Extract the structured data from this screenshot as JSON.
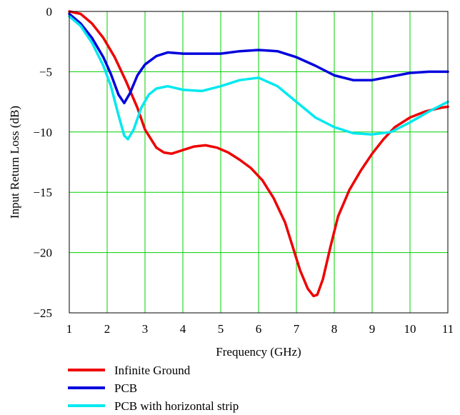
{
  "chart_data": {
    "type": "line",
    "xlabel": "Frequency (GHz)",
    "ylabel": "Input Return Loss (dB)",
    "xlim": [
      1,
      11
    ],
    "ylim": [
      -25,
      0
    ],
    "x_ticks": [
      1,
      2,
      3,
      4,
      5,
      6,
      7,
      8,
      9,
      10,
      11
    ],
    "y_ticks": [
      0,
      -5,
      -10,
      -15,
      -20,
      -25
    ],
    "y_tick_labels": [
      "0",
      "−5",
      "−10",
      "−15",
      "−20",
      "−25"
    ],
    "grid": true,
    "grid_color": "#00d000",
    "legend_position": "below",
    "series": [
      {
        "name": "Infinite Ground",
        "color": "#ee0000",
        "x": [
          1,
          1.3,
          1.6,
          1.9,
          2.2,
          2.5,
          2.8,
          3.0,
          3.3,
          3.5,
          3.7,
          4.0,
          4.3,
          4.6,
          4.9,
          5.2,
          5.5,
          5.8,
          6.1,
          6.4,
          6.7,
          6.9,
          7.1,
          7.3,
          7.45,
          7.55,
          7.7,
          7.9,
          8.1,
          8.4,
          8.7,
          9.0,
          9.3,
          9.6,
          10.0,
          10.4,
          10.8,
          11
        ],
        "y": [
          0,
          -0.2,
          -1.0,
          -2.2,
          -3.8,
          -5.8,
          -8.0,
          -9.8,
          -11.3,
          -11.7,
          -11.8,
          -11.5,
          -11.2,
          -11.1,
          -11.3,
          -11.7,
          -12.3,
          -13.0,
          -14.0,
          -15.5,
          -17.5,
          -19.5,
          -21.5,
          -23.0,
          -23.6,
          -23.5,
          -22.2,
          -19.5,
          -17.0,
          -14.8,
          -13.2,
          -11.8,
          -10.6,
          -9.6,
          -8.8,
          -8.3,
          -8.0,
          -7.9
        ]
      },
      {
        "name": "PCB",
        "color": "#0000dd",
        "x": [
          1,
          1.3,
          1.6,
          1.9,
          2.1,
          2.3,
          2.45,
          2.6,
          2.8,
          3.0,
          3.3,
          3.6,
          4.0,
          4.5,
          5.0,
          5.5,
          6.0,
          6.5,
          7.0,
          7.5,
          8.0,
          8.5,
          9.0,
          9.5,
          10.0,
          10.5,
          11
        ],
        "y": [
          -0.2,
          -1.0,
          -2.2,
          -3.8,
          -5.2,
          -6.9,
          -7.6,
          -6.8,
          -5.3,
          -4.4,
          -3.7,
          -3.4,
          -3.5,
          -3.5,
          -3.5,
          -3.3,
          -3.2,
          -3.3,
          -3.8,
          -4.5,
          -5.3,
          -5.7,
          -5.7,
          -5.4,
          -5.1,
          -5.0,
          -5.0
        ]
      },
      {
        "name": "PCB with horizontal strip",
        "color": "#00e8f0",
        "x": [
          1,
          1.3,
          1.6,
          1.9,
          2.1,
          2.3,
          2.45,
          2.55,
          2.7,
          2.9,
          3.1,
          3.3,
          3.6,
          4.0,
          4.5,
          5.0,
          5.5,
          6.0,
          6.5,
          7.0,
          7.5,
          8.0,
          8.5,
          9.0,
          9.5,
          10.0,
          10.5,
          11
        ],
        "y": [
          -0.4,
          -1.2,
          -2.6,
          -4.5,
          -6.2,
          -8.6,
          -10.3,
          -10.6,
          -9.8,
          -8.0,
          -6.9,
          -6.4,
          -6.2,
          -6.5,
          -6.6,
          -6.2,
          -5.7,
          -5.5,
          -6.2,
          -7.5,
          -8.8,
          -9.6,
          -10.1,
          -10.2,
          -10.0,
          -9.2,
          -8.3,
          -7.5
        ]
      }
    ]
  }
}
